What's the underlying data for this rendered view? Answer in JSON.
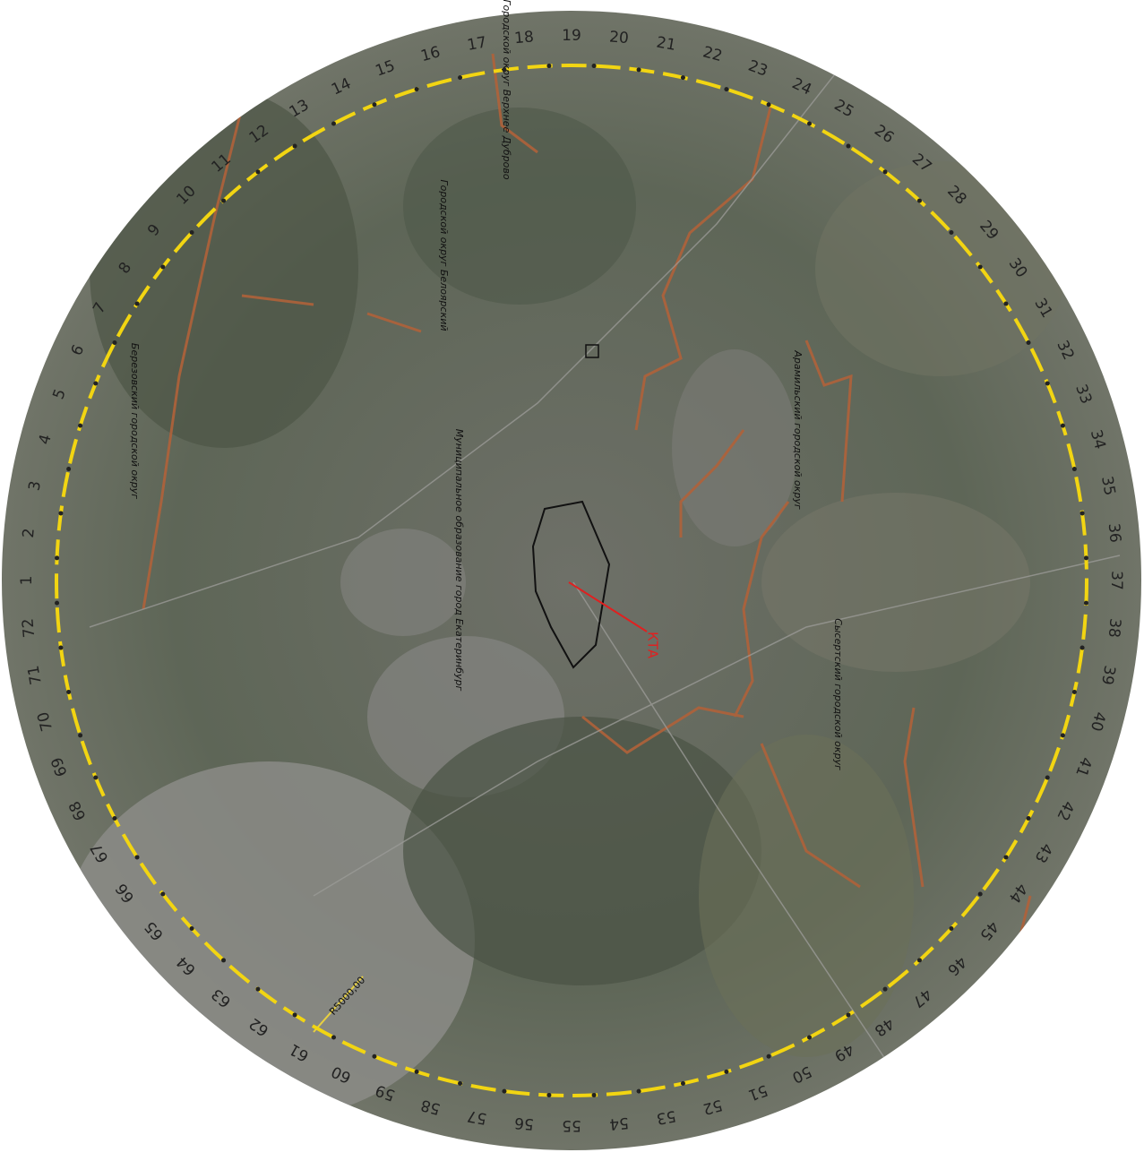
{
  "sectors": [
    "1",
    "2",
    "3",
    "4",
    "5",
    "6",
    "7",
    "8",
    "9",
    "10",
    "11",
    "12",
    "13",
    "14",
    "15",
    "16",
    "17",
    "18",
    "19",
    "20",
    "21",
    "22",
    "23",
    "24",
    "25",
    "26",
    "27",
    "28",
    "29",
    "30",
    "31",
    "32",
    "33",
    "34",
    "35",
    "36",
    "37",
    "38",
    "39",
    "40",
    "41",
    "42",
    "43",
    "44",
    "45",
    "46",
    "47",
    "48",
    "49",
    "50",
    "51",
    "52",
    "53",
    "54",
    "55",
    "56",
    "57",
    "58",
    "59",
    "60",
    "61",
    "62",
    "63",
    "64",
    "65",
    "66",
    "67",
    "68",
    "69",
    "70",
    "71",
    "72"
  ],
  "regions": [
    "Березовский городской округ",
    "Городской округ Верхнее Дуброво",
    "Городской округ Белоярский",
    "Муниципальное образование город Екатеринбург",
    "Арамильский городской округ",
    "Сысертский городской округ"
  ],
  "markers": {
    "kta": "КТА",
    "radius": "R5000,00"
  }
}
